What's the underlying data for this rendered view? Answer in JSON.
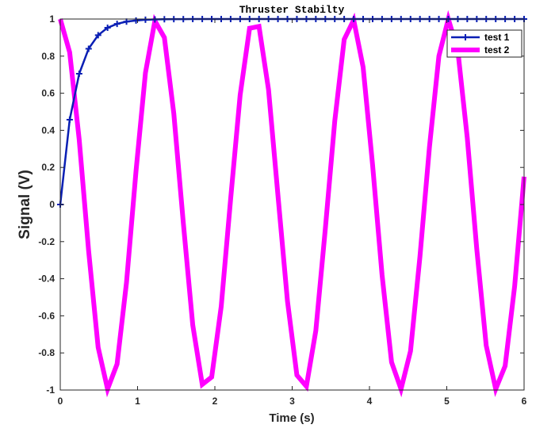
{
  "chart_data": {
    "type": "line",
    "title": "Thruster Stabilty",
    "xlabel": "Time (s)",
    "ylabel": "Signal (V)",
    "xlim": [
      0,
      6
    ],
    "ylim": [
      -1,
      1
    ],
    "xticks": [
      0,
      1,
      2,
      3,
      4,
      5,
      6
    ],
    "yticks": [
      1,
      0.8,
      0.6,
      0.4,
      0.2,
      0,
      -0.2,
      -0.4,
      -0.6,
      -0.8,
      -1
    ],
    "ytick_labels": [
      "1",
      "0.8",
      "0.6",
      "0.4",
      "0.2",
      "0",
      "-0.2",
      "-0.4",
      "-0.6",
      "-0.8",
      "-1"
    ],
    "grid": false,
    "legend_position": "top-right",
    "series": [
      {
        "name": "test 1",
        "color": "#0a1fb4",
        "marker": "plus",
        "x": [
          0,
          0.122,
          0.245,
          0.367,
          0.49,
          0.612,
          0.735,
          0.857,
          0.98,
          1.102,
          1.224,
          1.347,
          1.469,
          1.592,
          1.714,
          1.837,
          1.959,
          2.082,
          2.204,
          2.327,
          2.449,
          2.571,
          2.694,
          2.816,
          2.939,
          3.061,
          3.184,
          3.306,
          3.429,
          3.551,
          3.673,
          3.796,
          3.918,
          4.041,
          4.163,
          4.286,
          4.408,
          4.531,
          4.653,
          4.776,
          4.898,
          5.02,
          5.143,
          5.265,
          5.388,
          5.51,
          5.633,
          5.755,
          5.878,
          6.0
        ],
        "y": [
          0,
          0.457,
          0.705,
          0.84,
          0.913,
          0.953,
          0.974,
          0.986,
          0.992,
          0.996,
          0.998,
          0.999,
          0.9994,
          0.9997,
          0.9998,
          0.9999,
          1,
          1,
          1,
          1,
          1,
          1,
          1,
          1,
          1,
          1,
          1,
          1,
          1,
          1,
          1,
          1,
          1,
          1,
          1,
          1,
          1,
          1,
          1,
          1,
          1,
          1,
          1,
          1,
          1,
          1,
          1,
          1,
          1,
          1
        ]
      },
      {
        "name": "test 2",
        "color": "#ff00ff",
        "marker": "none",
        "x": [
          0,
          0.122,
          0.245,
          0.367,
          0.49,
          0.612,
          0.735,
          0.857,
          0.98,
          1.102,
          1.224,
          1.347,
          1.469,
          1.592,
          1.714,
          1.837,
          1.959,
          2.082,
          2.204,
          2.327,
          2.449,
          2.571,
          2.694,
          2.816,
          2.939,
          3.061,
          3.184,
          3.306,
          3.429,
          3.551,
          3.673,
          3.796,
          3.918,
          4.041,
          4.163,
          4.286,
          4.408,
          4.531,
          4.653,
          4.776,
          4.898,
          5.02,
          5.143,
          5.265,
          5.388,
          5.51,
          5.633,
          5.755,
          5.878,
          6.0
        ],
        "y": [
          1,
          0.82,
          0.35,
          -0.25,
          -0.77,
          -0.995,
          -0.86,
          -0.42,
          0.18,
          0.71,
          0.99,
          0.9,
          0.49,
          -0.1,
          -0.65,
          -0.97,
          -0.93,
          -0.55,
          0.03,
          0.59,
          0.95,
          0.96,
          0.62,
          0.05,
          -0.52,
          -0.92,
          -0.98,
          -0.68,
          -0.13,
          0.45,
          0.89,
          0.995,
          0.74,
          0.21,
          -0.38,
          -0.85,
          -0.995,
          -0.79,
          -0.28,
          0.31,
          0.8,
          1.0,
          0.83,
          0.36,
          -0.24,
          -0.76,
          -0.995,
          -0.87,
          -0.44,
          0.15
        ]
      }
    ]
  }
}
